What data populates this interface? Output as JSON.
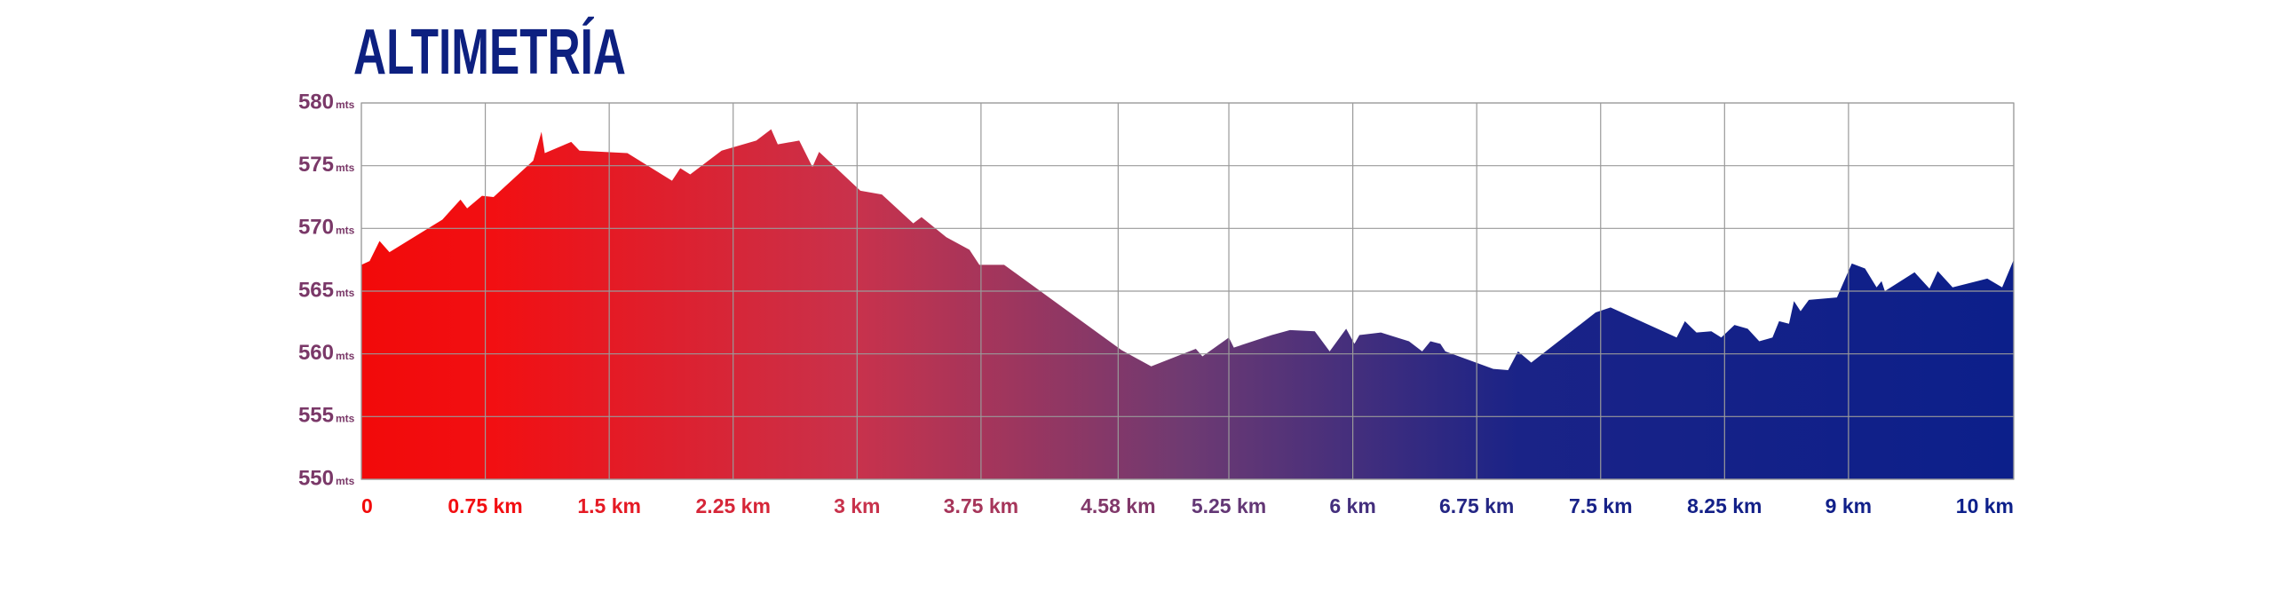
{
  "chart_data": {
    "type": "area",
    "title": "ALTIMETRÍA",
    "x": [
      0,
      0.05,
      0.11,
      0.17,
      0.49,
      0.6,
      0.64,
      0.73,
      0.8,
      1.04,
      1.09,
      1.11,
      1.27,
      1.32,
      1.61,
      1.88,
      1.93,
      1.99,
      2.18,
      2.39,
      2.48,
      2.52,
      2.65,
      2.73,
      2.77,
      3.02,
      3.15,
      3.34,
      3.39,
      3.54,
      3.68,
      3.74,
      3.89,
      4.6,
      4.78,
      5.05,
      5.09,
      5.25,
      5.28,
      5.51,
      5.62,
      5.77,
      5.86,
      5.96,
      6.01,
      6.04,
      6.17,
      6.34,
      6.42,
      6.47,
      6.53,
      6.56,
      6.85,
      6.94,
      7.0,
      7.08,
      7.47,
      7.56,
      7.96,
      8.01,
      8.08,
      8.17,
      8.23,
      8.31,
      8.39,
      8.46,
      8.54,
      8.58,
      8.64,
      8.67,
      8.71,
      8.76,
      8.93,
      9.02,
      9.1,
      9.17,
      9.2,
      9.22,
      9.4,
      9.49,
      9.54,
      9.63,
      9.84,
      9.93,
      10.0
    ],
    "values": [
      567.1,
      567.4,
      569.0,
      568.1,
      570.7,
      572.3,
      571.6,
      572.6,
      572.5,
      575.4,
      577.7,
      576.0,
      576.9,
      576.2,
      576.0,
      573.8,
      574.8,
      574.3,
      576.2,
      577.0,
      577.9,
      576.7,
      577.0,
      574.9,
      576.1,
      573.0,
      572.7,
      570.4,
      570.9,
      569.3,
      568.3,
      567.1,
      567.1,
      560.3,
      559.0,
      560.4,
      559.8,
      561.3,
      560.5,
      561.5,
      561.9,
      561.8,
      560.2,
      562.0,
      560.8,
      561.5,
      561.7,
      561.0,
      560.2,
      561.0,
      560.8,
      560.2,
      558.8,
      558.7,
      560.2,
      559.3,
      563.3,
      563.7,
      561.3,
      562.6,
      561.7,
      561.8,
      561.3,
      562.3,
      562.0,
      561.0,
      561.3,
      562.6,
      562.4,
      564.2,
      563.4,
      564.3,
      564.5,
      567.2,
      566.8,
      565.3,
      565.8,
      565.0,
      566.5,
      565.2,
      566.6,
      565.3,
      566.0,
      565.3,
      567.5
    ],
    "colors": [
      "#f20a0a",
      "#f20f12",
      "#c8324c",
      "#6e3a72",
      "#1a2387",
      "#0c1f8a"
    ],
    "xlim": [
      0,
      10
    ],
    "xticks": [
      0,
      {
        "value": 0.75,
        "label": "0.75 km"
      },
      {
        "value": 1.5,
        "label": "1.5 km"
      },
      {
        "value": 2.25,
        "label": "2.25 km"
      },
      {
        "value": 3,
        "label": "3 km"
      },
      {
        "value": 3.75,
        "label": "3.75 km"
      },
      {
        "value": 4.58,
        "label": "4.58 km"
      },
      {
        "value": 5.25,
        "label": "5.25 km"
      },
      {
        "value": 6,
        "label": "6 km"
      },
      {
        "value": 6.75,
        "label": "6.75 km"
      },
      {
        "value": 7.5,
        "label": "7.5 km"
      },
      {
        "value": 8.25,
        "label": "8.25 km"
      },
      {
        "value": 9,
        "label": "9 km"
      },
      {
        "value": 10,
        "label": "10 km"
      }
    ],
    "ylim": [
      550,
      580
    ],
    "yticks": [
      550,
      555,
      560,
      565,
      570,
      575,
      580
    ],
    "y_unit": "mts",
    "grid": true
  }
}
